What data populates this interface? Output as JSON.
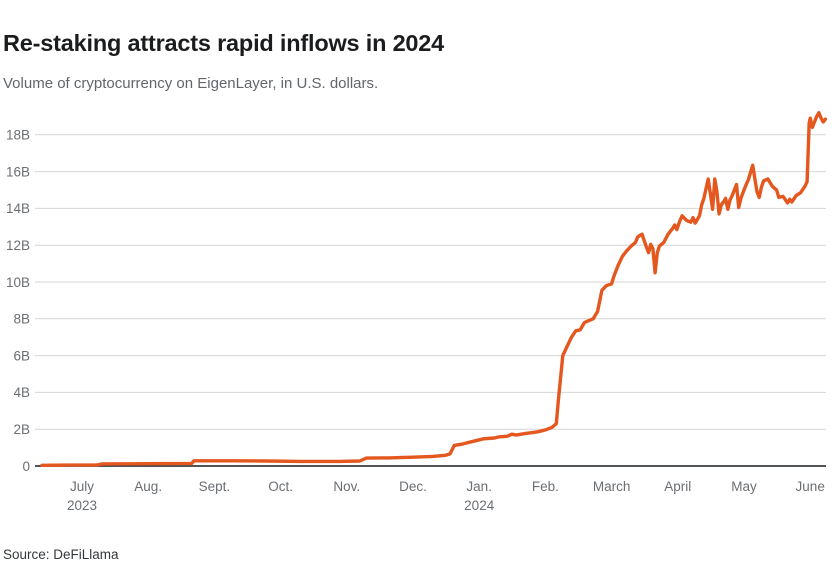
{
  "header": {
    "title": "Re-staking attracts rapid inflows in 2024",
    "subtitle": "Volume of cryptocurrency on EigenLayer, in U.S. dollars."
  },
  "footer": {
    "source": "Source: DeFiLlama"
  },
  "chart_data": {
    "type": "line",
    "title": "Re-staking attracts rapid inflows in 2024",
    "subtitle": "Volume of cryptocurrency on EigenLayer, in U.S. dollars.",
    "source": "Source: DeFiLlama",
    "unit": "U.S. dollars, billions",
    "grid": "horizontal",
    "legend": "none",
    "ylim": [
      0,
      19.5
    ],
    "colors": {
      "line": "#E4571E",
      "gridline": "#D4D6D8",
      "zero_axis": "#3A3D40",
      "tick_text": "#6B6F73",
      "title_text": "#1A1C1E",
      "subtitle_text": "#62666B"
    },
    "y_axis": {
      "ticks": [
        {
          "value": 0,
          "label": "0"
        },
        {
          "value": 2,
          "label": "2B"
        },
        {
          "value": 4,
          "label": "4B"
        },
        {
          "value": 6,
          "label": "6B"
        },
        {
          "value": 8,
          "label": "8B"
        },
        {
          "value": 10,
          "label": "10B"
        },
        {
          "value": 12,
          "label": "12B"
        },
        {
          "value": 14,
          "label": "14B"
        },
        {
          "value": 16,
          "label": "16B"
        },
        {
          "value": 18,
          "label": "18B"
        }
      ]
    },
    "x_axis": {
      "ticks": [
        {
          "label": "July",
          "sublabel": "2023"
        },
        {
          "label": "Aug.",
          "sublabel": ""
        },
        {
          "label": "Sept.",
          "sublabel": ""
        },
        {
          "label": "Oct.",
          "sublabel": ""
        },
        {
          "label": "Nov.",
          "sublabel": ""
        },
        {
          "label": "Dec.",
          "sublabel": ""
        },
        {
          "label": "Jan.",
          "sublabel": "2024"
        },
        {
          "label": "Feb.",
          "sublabel": ""
        },
        {
          "label": "March",
          "sublabel": ""
        },
        {
          "label": "April",
          "sublabel": ""
        },
        {
          "label": "May",
          "sublabel": ""
        },
        {
          "label": "June",
          "sublabel": ""
        }
      ]
    },
    "series": [
      {
        "name": "EigenLayer volume",
        "unit": "billions USD",
        "color": "#E4571E",
        "points": [
          [
            "2023-06-13",
            0.04
          ],
          [
            "2023-06-25",
            0.05
          ],
          [
            "2023-07-08",
            0.06
          ],
          [
            "2023-07-10",
            0.11
          ],
          [
            "2023-07-25",
            0.12
          ],
          [
            "2023-08-10",
            0.13
          ],
          [
            "2023-08-21",
            0.14
          ],
          [
            "2023-08-22",
            0.28
          ],
          [
            "2023-09-10",
            0.28
          ],
          [
            "2023-09-25",
            0.27
          ],
          [
            "2023-10-10",
            0.25
          ],
          [
            "2023-10-28",
            0.25
          ],
          [
            "2023-11-07",
            0.27
          ],
          [
            "2023-11-10",
            0.43
          ],
          [
            "2023-11-20",
            0.44
          ],
          [
            "2023-12-01",
            0.48
          ],
          [
            "2023-12-10",
            0.52
          ],
          [
            "2023-12-16",
            0.58
          ],
          [
            "2023-12-18",
            0.66
          ],
          [
            "2023-12-20",
            1.12
          ],
          [
            "2023-12-24",
            1.2
          ],
          [
            "2023-12-28",
            1.32
          ],
          [
            "2024-01-03",
            1.48
          ],
          [
            "2024-01-08",
            1.52
          ],
          [
            "2024-01-10",
            1.58
          ],
          [
            "2024-01-14",
            1.62
          ],
          [
            "2024-01-16",
            1.73
          ],
          [
            "2024-01-18",
            1.68
          ],
          [
            "2024-01-22",
            1.76
          ],
          [
            "2024-01-28",
            1.86
          ],
          [
            "2024-02-01",
            1.96
          ],
          [
            "2024-02-04",
            2.1
          ],
          [
            "2024-02-06",
            2.3
          ],
          [
            "2024-02-07",
            3.6
          ],
          [
            "2024-02-09",
            6.0
          ],
          [
            "2024-02-11",
            6.5
          ],
          [
            "2024-02-13",
            7.0
          ],
          [
            "2024-02-15",
            7.35
          ],
          [
            "2024-02-17",
            7.4
          ],
          [
            "2024-02-19",
            7.8
          ],
          [
            "2024-02-21",
            7.9
          ],
          [
            "2024-02-23",
            8.0
          ],
          [
            "2024-02-25",
            8.4
          ],
          [
            "2024-02-27",
            9.55
          ],
          [
            "2024-02-29",
            9.8
          ],
          [
            "2024-03-01",
            9.9
          ],
          [
            "2024-03-02",
            10.3
          ],
          [
            "2024-03-04",
            10.9
          ],
          [
            "2024-03-06",
            11.4
          ],
          [
            "2024-03-08",
            11.7
          ],
          [
            "2024-03-10",
            11.95
          ],
          [
            "2024-03-12",
            12.15
          ],
          [
            "2024-03-13",
            12.45
          ],
          [
            "2024-03-15",
            12.6
          ],
          [
            "2024-03-17",
            11.9
          ],
          [
            "2024-03-18",
            11.6
          ],
          [
            "2024-03-19",
            12.05
          ],
          [
            "2024-03-20",
            11.8
          ],
          [
            "2024-03-21",
            10.5
          ],
          [
            "2024-03-22",
            11.6
          ],
          [
            "2024-03-23",
            11.95
          ],
          [
            "2024-03-25",
            12.15
          ],
          [
            "2024-03-27",
            12.6
          ],
          [
            "2024-03-29",
            12.9
          ],
          [
            "2024-03-30",
            13.1
          ],
          [
            "2024-03-31",
            12.85
          ],
          [
            "2024-04-02",
            13.35
          ],
          [
            "2024-04-03",
            13.6
          ],
          [
            "2024-04-05",
            13.35
          ],
          [
            "2024-04-07",
            13.25
          ],
          [
            "2024-04-08",
            13.5
          ],
          [
            "2024-04-09",
            13.2
          ],
          [
            "2024-04-11",
            13.6
          ],
          [
            "2024-04-12",
            14.2
          ],
          [
            "2024-04-13",
            14.55
          ],
          [
            "2024-04-15",
            15.6
          ],
          [
            "2024-04-16",
            14.8
          ],
          [
            "2024-04-17",
            13.95
          ],
          [
            "2024-04-18",
            15.6
          ],
          [
            "2024-04-19",
            14.9
          ],
          [
            "2024-04-20",
            13.7
          ],
          [
            "2024-04-21",
            14.2
          ],
          [
            "2024-04-22",
            14.35
          ],
          [
            "2024-04-23",
            14.55
          ],
          [
            "2024-04-24",
            13.95
          ],
          [
            "2024-04-25",
            14.45
          ],
          [
            "2024-04-26",
            14.7
          ],
          [
            "2024-04-28",
            15.3
          ],
          [
            "2024-04-29",
            14.05
          ],
          [
            "2024-04-30",
            14.55
          ],
          [
            "2024-05-01",
            15.0
          ],
          [
            "2024-05-02",
            15.3
          ],
          [
            "2024-05-03",
            15.55
          ],
          [
            "2024-05-05",
            16.35
          ],
          [
            "2024-05-06",
            15.6
          ],
          [
            "2024-05-07",
            14.9
          ],
          [
            "2024-05-08",
            14.6
          ],
          [
            "2024-05-09",
            15.15
          ],
          [
            "2024-05-10",
            15.5
          ],
          [
            "2024-05-12",
            15.6
          ],
          [
            "2024-05-14",
            15.2
          ],
          [
            "2024-05-16",
            15.0
          ],
          [
            "2024-05-17",
            14.6
          ],
          [
            "2024-05-19",
            14.65
          ],
          [
            "2024-05-21",
            14.3
          ],
          [
            "2024-05-22",
            14.5
          ],
          [
            "2024-05-23",
            14.35
          ],
          [
            "2024-05-25",
            14.7
          ],
          [
            "2024-05-27",
            14.85
          ],
          [
            "2024-05-29",
            15.2
          ],
          [
            "2024-05-30",
            15.45
          ],
          [
            "2024-05-31",
            18.65
          ],
          [
            "2024-06-01",
            18.9
          ],
          [
            "2024-06-02",
            18.4
          ],
          [
            "2024-06-03",
            18.7
          ],
          [
            "2024-06-04",
            19.0
          ],
          [
            "2024-06-05",
            19.2
          ],
          [
            "2024-06-06",
            18.9
          ],
          [
            "2024-06-07",
            18.7
          ],
          [
            "2024-06-08",
            18.85
          ]
        ]
      }
    ]
  }
}
